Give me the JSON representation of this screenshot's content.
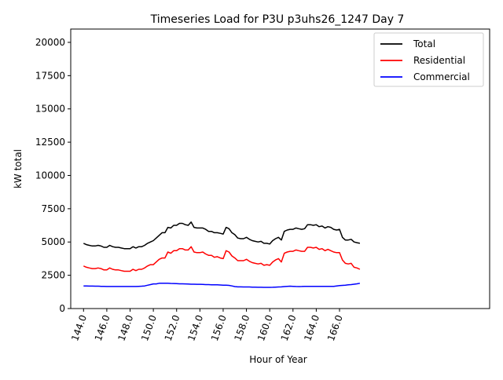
{
  "chart_data": {
    "type": "line",
    "title": "Timeseries Load for P3U p3uhs26_1247  Day 7",
    "xlabel": "Hour of Year",
    "ylabel": "kW total",
    "xlim": [
      142.9,
      178.9
    ],
    "ylim": [
      0,
      21000
    ],
    "xticks": [
      144,
      146,
      148,
      150,
      152,
      154,
      156,
      158,
      160,
      162,
      164,
      166
    ],
    "xtick_labels": [
      "144.0",
      "146.0",
      "148.0",
      "150.0",
      "152.0",
      "154.0",
      "156.0",
      "158.0",
      "160.0",
      "162.0",
      "164.0",
      "166.0"
    ],
    "yticks": [
      0,
      2500,
      5000,
      7500,
      10000,
      12500,
      15000,
      17500,
      20000
    ],
    "ytick_labels": [
      "0",
      "2500",
      "5000",
      "7500",
      "10000",
      "12500",
      "15000",
      "17500",
      "20000"
    ],
    "legend_position": "top-right",
    "x": [
      144.0,
      144.25,
      144.5,
      144.75,
      145.0,
      145.25,
      145.5,
      145.75,
      146.0,
      146.25,
      146.5,
      146.75,
      147.0,
      147.25,
      147.5,
      147.75,
      148.0,
      148.25,
      148.5,
      148.75,
      149.0,
      149.25,
      149.5,
      149.75,
      150.0,
      150.25,
      150.5,
      150.75,
      151.0,
      151.25,
      151.5,
      151.75,
      152.0,
      152.25,
      152.5,
      152.75,
      153.0,
      153.25,
      153.5,
      153.75,
      154.0,
      154.25,
      154.5,
      154.75,
      155.0,
      155.25,
      155.5,
      155.75,
      156.0,
      156.25,
      156.5,
      156.75,
      157.0,
      157.25,
      157.5,
      157.75,
      158.0,
      158.25,
      158.5,
      158.75,
      159.0,
      159.25,
      159.5,
      159.75,
      160.0,
      160.25,
      160.5,
      160.75,
      161.0,
      161.25,
      161.5,
      161.75,
      162.0,
      162.25,
      162.5,
      162.75,
      163.0,
      163.25,
      163.5,
      163.75,
      164.0,
      164.25,
      164.5,
      164.75,
      165.0,
      165.25,
      165.5,
      165.75,
      166.0,
      166.25,
      166.5,
      166.75,
      167.0,
      167.25,
      167.5,
      167.75
    ],
    "series": [
      {
        "name": "Total",
        "color": "#000000",
        "values": [
          4900,
          4800,
          4750,
          4700,
          4700,
          4750,
          4700,
          4600,
          4600,
          4750,
          4650,
          4600,
          4600,
          4550,
          4500,
          4500,
          4500,
          4650,
          4550,
          4650,
          4650,
          4750,
          4900,
          5000,
          5100,
          5300,
          5500,
          5700,
          5700,
          6100,
          6050,
          6250,
          6250,
          6400,
          6400,
          6300,
          6250,
          6500,
          6100,
          6050,
          6050,
          6050,
          5950,
          5800,
          5800,
          5700,
          5700,
          5650,
          5600,
          6100,
          6000,
          5700,
          5550,
          5300,
          5250,
          5250,
          5350,
          5200,
          5100,
          5050,
          5000,
          5050,
          4900,
          4900,
          4850,
          5100,
          5250,
          5350,
          5150,
          5800,
          5900,
          5950,
          5950,
          6050,
          6000,
          5950,
          6000,
          6300,
          6300,
          6250,
          6300,
          6150,
          6200,
          6050,
          6150,
          6100,
          5950,
          5900,
          5950,
          5350,
          5150,
          5150,
          5200,
          5000,
          4950,
          4900
        ]
      },
      {
        "name": "Residential",
        "color": "#ff0000",
        "values": [
          3200,
          3100,
          3050,
          3000,
          3000,
          3050,
          3000,
          2900,
          2900,
          3050,
          2950,
          2900,
          2900,
          2850,
          2800,
          2800,
          2800,
          2950,
          2850,
          2950,
          2950,
          3050,
          3200,
          3300,
          3300,
          3500,
          3700,
          3800,
          3800,
          4250,
          4150,
          4350,
          4350,
          4500,
          4500,
          4400,
          4400,
          4650,
          4250,
          4200,
          4200,
          4250,
          4100,
          4000,
          4000,
          3850,
          3900,
          3800,
          3750,
          4350,
          4250,
          3950,
          3800,
          3600,
          3600,
          3600,
          3700,
          3550,
          3450,
          3400,
          3350,
          3400,
          3250,
          3300,
          3250,
          3500,
          3650,
          3750,
          3500,
          4150,
          4250,
          4300,
          4300,
          4400,
          4350,
          4300,
          4300,
          4600,
          4600,
          4550,
          4600,
          4450,
          4500,
          4350,
          4450,
          4350,
          4250,
          4200,
          4200,
          3650,
          3400,
          3350,
          3400,
          3100,
          3050,
          2950
        ]
      },
      {
        "name": "Commercial",
        "color": "#0000ff",
        "values": [
          1700,
          1700,
          1690,
          1690,
          1680,
          1680,
          1670,
          1670,
          1660,
          1660,
          1660,
          1660,
          1660,
          1660,
          1660,
          1660,
          1660,
          1660,
          1660,
          1670,
          1680,
          1700,
          1750,
          1800,
          1850,
          1850,
          1900,
          1900,
          1900,
          1900,
          1890,
          1880,
          1870,
          1860,
          1860,
          1850,
          1840,
          1830,
          1830,
          1820,
          1820,
          1810,
          1800,
          1800,
          1790,
          1780,
          1780,
          1770,
          1760,
          1750,
          1740,
          1700,
          1650,
          1630,
          1630,
          1620,
          1620,
          1620,
          1610,
          1610,
          1600,
          1600,
          1590,
          1590,
          1590,
          1600,
          1610,
          1620,
          1630,
          1650,
          1670,
          1680,
          1670,
          1660,
          1650,
          1660,
          1670,
          1670,
          1670,
          1670,
          1670,
          1670,
          1670,
          1670,
          1670,
          1670,
          1670,
          1700,
          1720,
          1740,
          1760,
          1780,
          1800,
          1830,
          1860,
          1900
        ]
      }
    ]
  }
}
